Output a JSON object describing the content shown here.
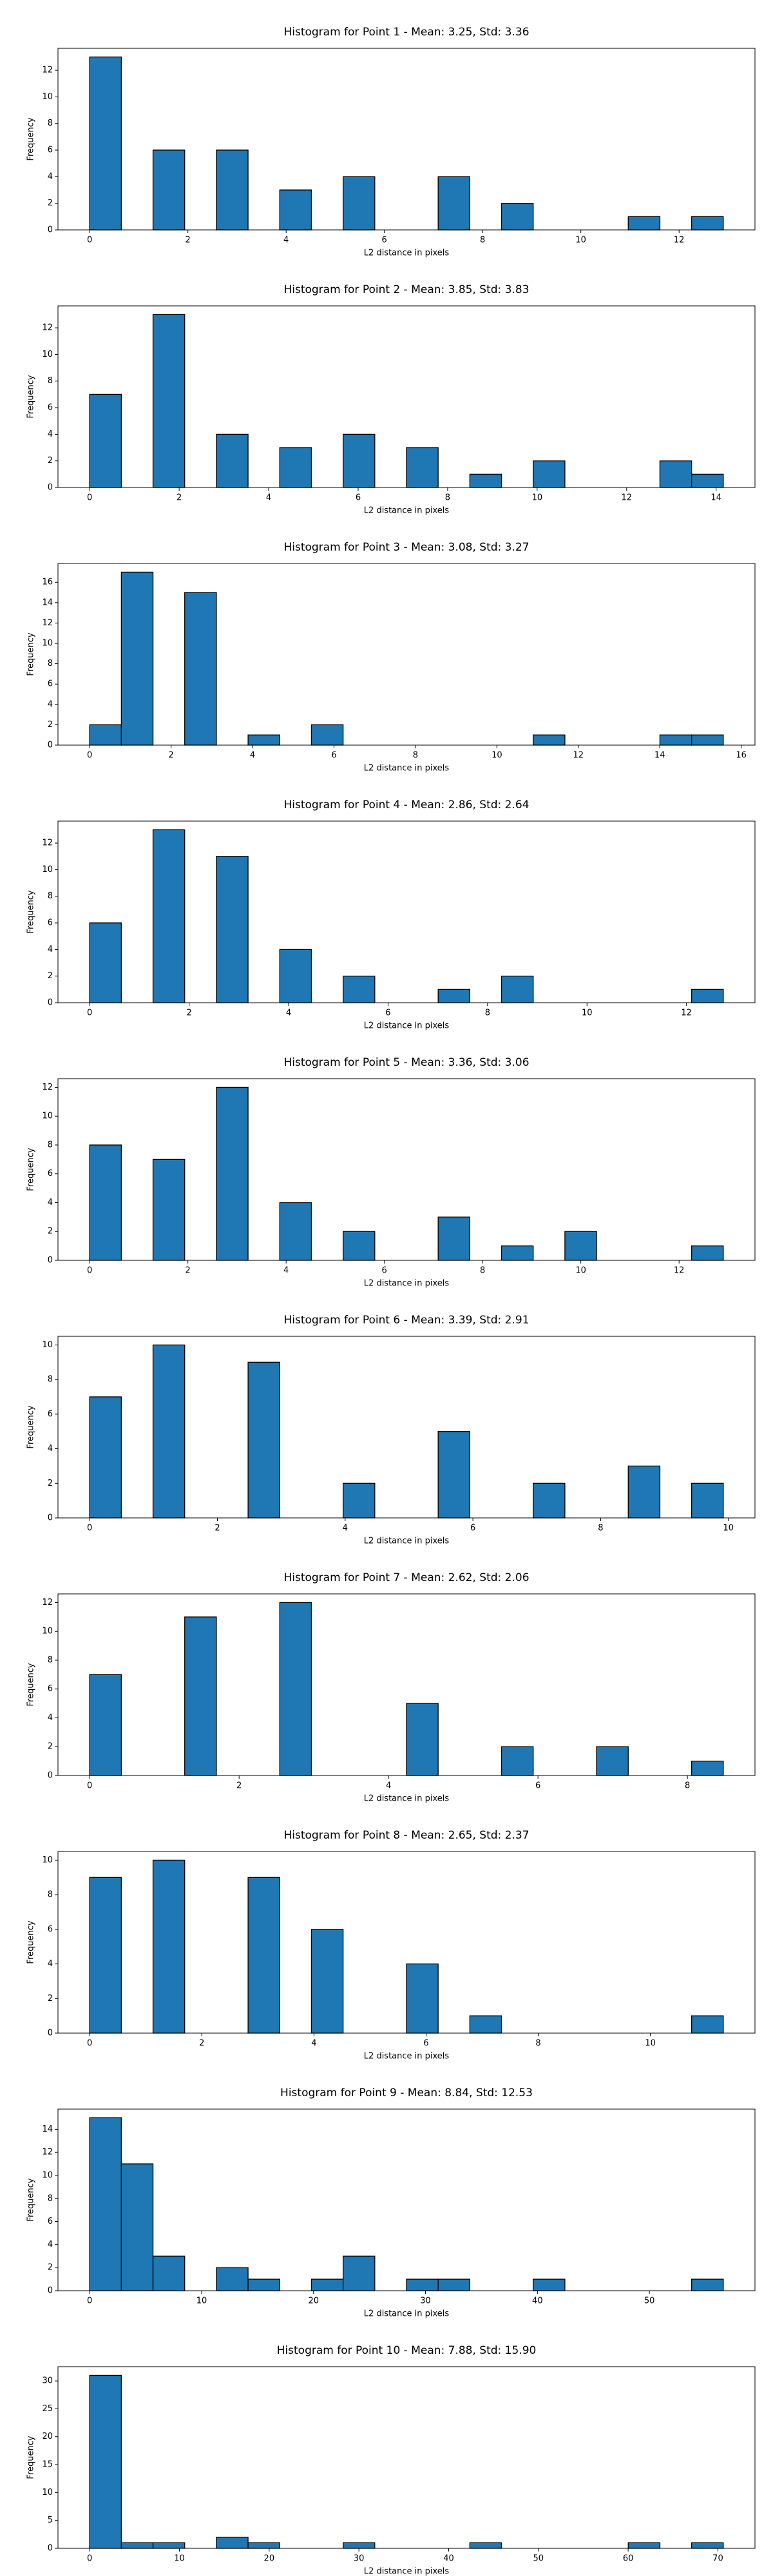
{
  "chart_data": [
    {
      "type": "histogram",
      "title": "Histogram for Point 1 - Mean: 3.25, Std: 3.36",
      "xlabel": "L2 distance in pixels",
      "ylabel": "Frequency",
      "color": "#1f77b4",
      "bins": [
        0,
        0.645,
        1.29,
        1.935,
        2.58,
        3.225,
        3.87,
        4.515,
        5.16,
        5.805,
        6.45,
        7.095,
        7.74,
        8.385,
        9.03,
        9.675,
        10.32,
        10.965,
        11.61,
        12.255,
        12.9
      ],
      "counts": [
        13,
        0,
        6,
        0,
        6,
        0,
        3,
        0,
        4,
        0,
        0,
        4,
        0,
        2,
        0,
        0,
        0,
        1,
        0,
        1
      ],
      "xlim": [
        -0.645,
        13.545
      ],
      "ylim": [
        0,
        13.65
      ],
      "xticks": [
        0,
        2,
        4,
        6,
        8,
        10,
        12
      ],
      "yticks": [
        0,
        2,
        4,
        6,
        8,
        10,
        12
      ]
    },
    {
      "type": "histogram",
      "title": "Histogram for Point 2 - Mean: 3.85, Std: 3.83",
      "xlabel": "L2 distance in pixels",
      "ylabel": "Frequency",
      "color": "#1f77b4",
      "bins": [
        0,
        0.708,
        1.416,
        2.124,
        2.832,
        3.54,
        4.248,
        4.956,
        5.664,
        6.372,
        7.08,
        7.788,
        8.496,
        9.204,
        9.912,
        10.62,
        11.328,
        12.036,
        12.744,
        13.452,
        14.16
      ],
      "counts": [
        7,
        0,
        13,
        0,
        4,
        0,
        3,
        0,
        4,
        0,
        3,
        0,
        1,
        0,
        2,
        0,
        0,
        0,
        2,
        1
      ],
      "xlim": [
        -0.708,
        14.868
      ],
      "ylim": [
        0,
        13.65
      ],
      "xticks": [
        0,
        2,
        4,
        6,
        8,
        10,
        12,
        14
      ],
      "yticks": [
        0,
        2,
        4,
        6,
        8,
        10,
        12
      ]
    },
    {
      "type": "histogram",
      "title": "Histogram for Point 3 - Mean: 3.08, Std: 3.27",
      "xlabel": "L2 distance in pixels",
      "ylabel": "Frequency",
      "color": "#1f77b4",
      "bins": [
        0,
        0.778,
        1.556,
        2.334,
        3.112,
        3.89,
        4.668,
        5.446,
        6.224,
        7.002,
        7.78,
        8.558,
        9.336,
        10.114,
        10.892,
        11.67,
        12.448,
        13.226,
        14.004,
        14.782,
        15.56
      ],
      "counts": [
        2,
        17,
        0,
        15,
        0,
        1,
        0,
        2,
        0,
        0,
        0,
        0,
        0,
        0,
        1,
        0,
        0,
        0,
        1,
        1
      ],
      "xlim": [
        -0.778,
        16.338
      ],
      "ylim": [
        0,
        17.85
      ],
      "xticks": [
        0,
        2,
        4,
        6,
        8,
        10,
        12,
        14,
        16
      ],
      "yticks": [
        0,
        2,
        4,
        6,
        8,
        10,
        12,
        14,
        16
      ]
    },
    {
      "type": "histogram",
      "title": "Histogram for Point 4 - Mean: 2.86, Std: 2.64",
      "xlabel": "L2 distance in pixels",
      "ylabel": "Frequency",
      "color": "#1f77b4",
      "bins": [
        0,
        0.637,
        1.274,
        1.911,
        2.548,
        3.185,
        3.822,
        4.459,
        5.096,
        5.733,
        6.37,
        7.007,
        7.644,
        8.281,
        8.918,
        9.555,
        10.192,
        10.829,
        11.466,
        12.103,
        12.74
      ],
      "counts": [
        6,
        0,
        13,
        0,
        11,
        0,
        4,
        0,
        2,
        0,
        0,
        1,
        0,
        2,
        0,
        0,
        0,
        0,
        0,
        1
      ],
      "xlim": [
        -0.637,
        13.377
      ],
      "ylim": [
        0,
        13.65
      ],
      "xticks": [
        0,
        2,
        4,
        6,
        8,
        10,
        12
      ],
      "yticks": [
        0,
        2,
        4,
        6,
        8,
        10,
        12
      ]
    },
    {
      "type": "histogram",
      "title": "Histogram for Point 5 - Mean: 3.36, Std: 3.06",
      "xlabel": "L2 distance in pixels",
      "ylabel": "Frequency",
      "color": "#1f77b4",
      "bins": [
        0,
        0.645,
        1.29,
        1.935,
        2.58,
        3.225,
        3.87,
        4.515,
        5.16,
        5.805,
        6.45,
        7.095,
        7.74,
        8.385,
        9.03,
        9.675,
        10.32,
        10.965,
        11.61,
        12.255,
        12.9
      ],
      "counts": [
        8,
        0,
        7,
        0,
        12,
        0,
        4,
        0,
        2,
        0,
        0,
        3,
        0,
        1,
        0,
        2,
        0,
        0,
        0,
        1
      ],
      "xlim": [
        -0.645,
        13.545
      ],
      "ylim": [
        0,
        12.6
      ],
      "xticks": [
        0,
        2,
        4,
        6,
        8,
        10,
        12
      ],
      "yticks": [
        0,
        2,
        4,
        6,
        8,
        10,
        12
      ]
    },
    {
      "type": "histogram",
      "title": "Histogram for Point 6 - Mean: 3.39, Std: 2.91",
      "xlabel": "L2 distance in pixels",
      "ylabel": "Frequency",
      "color": "#1f77b4",
      "bins": [
        0,
        0.496,
        0.992,
        1.488,
        1.984,
        2.48,
        2.976,
        3.472,
        3.968,
        4.464,
        4.96,
        5.456,
        5.952,
        6.448,
        6.944,
        7.44,
        7.936,
        8.432,
        8.928,
        9.424,
        9.92
      ],
      "counts": [
        7,
        0,
        10,
        0,
        0,
        9,
        0,
        0,
        2,
        0,
        0,
        5,
        0,
        0,
        2,
        0,
        0,
        3,
        0,
        2
      ],
      "xlim": [
        -0.496,
        10.416
      ],
      "ylim": [
        0,
        10.5
      ],
      "xticks": [
        0,
        2,
        4,
        6,
        8,
        10
      ],
      "yticks": [
        0,
        2,
        4,
        6,
        8,
        10
      ]
    },
    {
      "type": "histogram",
      "title": "Histogram for Point 7 - Mean: 2.62, Std: 2.06",
      "xlabel": "L2 distance in pixels",
      "ylabel": "Frequency",
      "color": "#1f77b4",
      "bins": [
        0,
        0.424,
        0.848,
        1.272,
        1.696,
        2.12,
        2.544,
        2.968,
        3.392,
        3.816,
        4.24,
        4.664,
        5.088,
        5.512,
        5.936,
        6.36,
        6.784,
        7.208,
        7.632,
        8.056,
        8.48
      ],
      "counts": [
        7,
        0,
        0,
        11,
        0,
        0,
        12,
        0,
        0,
        0,
        5,
        0,
        0,
        2,
        0,
        0,
        2,
        0,
        0,
        1
      ],
      "xlim": [
        -0.424,
        8.904
      ],
      "ylim": [
        0,
        12.6
      ],
      "xticks": [
        0,
        2,
        4,
        6,
        8
      ],
      "yticks": [
        0,
        2,
        4,
        6,
        8,
        10,
        12
      ]
    },
    {
      "type": "histogram",
      "title": "Histogram for Point 8 - Mean: 2.65, Std: 2.37",
      "xlabel": "L2 distance in pixels",
      "ylabel": "Frequency",
      "color": "#1f77b4",
      "bins": [
        0,
        0.565,
        1.13,
        1.695,
        2.26,
        2.825,
        3.39,
        3.955,
        4.52,
        5.085,
        5.65,
        6.215,
        6.78,
        7.345,
        7.91,
        8.475,
        9.04,
        9.605,
        10.17,
        10.735,
        11.3
      ],
      "counts": [
        9,
        0,
        10,
        0,
        0,
        9,
        0,
        6,
        0,
        0,
        4,
        0,
        1,
        0,
        0,
        0,
        0,
        0,
        0,
        1
      ],
      "xlim": [
        -0.565,
        11.865
      ],
      "ylim": [
        0,
        10.5
      ],
      "xticks": [
        0,
        2,
        4,
        6,
        8,
        10
      ],
      "yticks": [
        0,
        2,
        4,
        6,
        8,
        10
      ]
    },
    {
      "type": "histogram",
      "title": "Histogram for Point 9 - Mean: 8.84, Std: 12.53",
      "xlabel": "L2 distance in pixels",
      "ylabel": "Frequency",
      "color": "#1f77b4",
      "bins": [
        0,
        2.83,
        5.66,
        8.49,
        11.32,
        14.15,
        16.98,
        19.81,
        22.64,
        25.47,
        28.3,
        31.13,
        33.96,
        36.79,
        39.62,
        42.45,
        45.28,
        48.11,
        50.94,
        53.77,
        56.6
      ],
      "counts": [
        15,
        11,
        3,
        0,
        2,
        1,
        0,
        1,
        3,
        0,
        1,
        1,
        0,
        0,
        1,
        0,
        0,
        0,
        0,
        1
      ],
      "xlim": [
        -2.83,
        59.43
      ],
      "ylim": [
        0,
        15.75
      ],
      "xticks": [
        0,
        10,
        20,
        30,
        40,
        50
      ],
      "yticks": [
        0,
        2,
        4,
        6,
        8,
        10,
        12,
        14
      ]
    },
    {
      "type": "histogram",
      "title": "Histogram for Point 10 - Mean: 7.88, Std: 15.90",
      "xlabel": "L2 distance in pixels",
      "ylabel": "Frequency",
      "color": "#1f77b4",
      "bins": [
        0,
        3.53,
        7.06,
        10.59,
        14.12,
        17.65,
        21.18,
        24.71,
        28.24,
        31.77,
        35.3,
        38.83,
        42.36,
        45.89,
        49.42,
        52.95,
        56.48,
        60.01,
        63.54,
        67.07,
        70.6
      ],
      "counts": [
        31,
        1,
        1,
        0,
        2,
        1,
        0,
        0,
        1,
        0,
        0,
        0,
        1,
        0,
        0,
        0,
        0,
        1,
        0,
        1
      ],
      "xlim": [
        -3.53,
        74.13
      ],
      "ylim": [
        0,
        32.55
      ],
      "xticks": [
        0,
        10,
        20,
        30,
        40,
        50,
        60,
        70
      ],
      "yticks": [
        0,
        5,
        10,
        15,
        20,
        25,
        30
      ]
    }
  ]
}
